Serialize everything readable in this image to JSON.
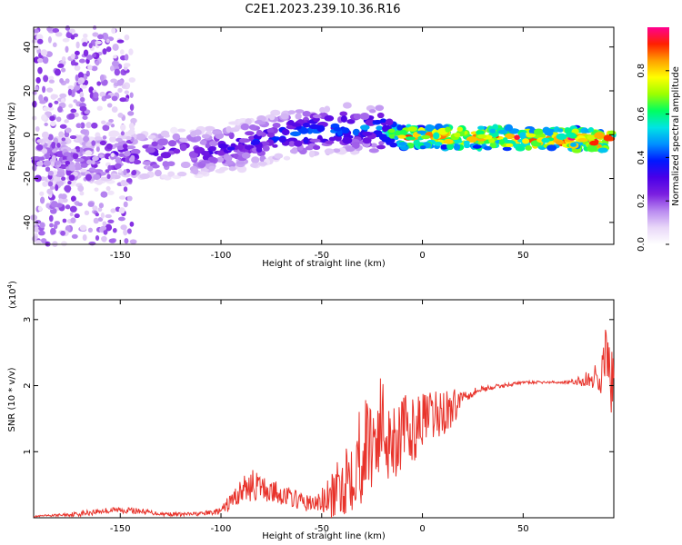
{
  "title": "C2E1.2023.239.10.36.R16",
  "colors": {
    "snr_line": "#e8332b",
    "colormap": [
      "#ffffff",
      "#e9d8f8",
      "#b98af0",
      "#7b1fe0",
      "#4a00e8",
      "#0018ff",
      "#0090ff",
      "#00e4e4",
      "#00ff60",
      "#9cff00",
      "#ffff00",
      "#ffa000",
      "#ff2000",
      "#ff0090"
    ]
  },
  "chart_data": [
    {
      "type": "heatmap",
      "xlabel": "Height of straight line (km)",
      "ylabel": "Frequency (Hz)",
      "xlim": [
        -193,
        95
      ],
      "ylim": [
        -50,
        49
      ],
      "xticks": [
        -150,
        -100,
        -50,
        0,
        50
      ],
      "yticks": [
        -40,
        -20,
        0,
        20,
        40
      ],
      "colorbar": {
        "label": "Normalized spectral amplitude",
        "range": [
          0.0,
          1.0
        ],
        "ticks": [
          "0.0",
          "0.2",
          "0.4",
          "0.6",
          "0.8"
        ]
      },
      "ridge": [
        {
          "x": -170,
          "y": -12,
          "a": 0.25
        },
        {
          "x": -150,
          "y": -10,
          "a": 0.3
        },
        {
          "x": -130,
          "y": -9,
          "a": 0.3
        },
        {
          "x": -110,
          "y": -8,
          "a": 0.3
        },
        {
          "x": -90,
          "y": -5,
          "a": 0.35
        },
        {
          "x": -70,
          "y": 0,
          "a": 0.4
        },
        {
          "x": -50,
          "y": 2,
          "a": 0.45
        },
        {
          "x": -30,
          "y": 3,
          "a": 0.45
        },
        {
          "x": -20,
          "y": 2,
          "a": 0.5
        },
        {
          "x": -10,
          "y": -1,
          "a": 0.85
        },
        {
          "x": 0,
          "y": -1,
          "a": 0.9
        },
        {
          "x": 20,
          "y": -1,
          "a": 0.9
        },
        {
          "x": 40,
          "y": -1.5,
          "a": 0.92
        },
        {
          "x": 60,
          "y": -2,
          "a": 0.95
        },
        {
          "x": 80,
          "y": -2,
          "a": 0.95
        },
        {
          "x": 95,
          "y": -3,
          "a": 0.95
        }
      ]
    },
    {
      "type": "line",
      "xlabel": "Height of straight line (km)",
      "ylabel": "SNR (10 * v/v)",
      "y_multiplier": "(x10",
      "y_multiplier_exp": "4",
      "multiplier_close": ")",
      "xlim": [
        -193,
        95
      ],
      "ylim": [
        0,
        3.3
      ],
      "xticks": [
        -150,
        -100,
        -50,
        0,
        50
      ],
      "yticks": [
        1,
        2,
        3
      ],
      "series": [
        {
          "x": [
            -193,
            -180,
            -170,
            -160,
            -150,
            -140,
            -130,
            -120,
            -110,
            -100,
            -95,
            -90,
            -85,
            -80,
            -75,
            -70,
            -65,
            -60,
            -55,
            -50,
            -45,
            -40,
            -35,
            -30,
            -25,
            -20,
            -15,
            -10,
            -5,
            0,
            5,
            10,
            15,
            20,
            25,
            30,
            40,
            50,
            60,
            70,
            75,
            80,
            85,
            88,
            90,
            92,
            94,
            95
          ],
          "y": [
            0.02,
            0.04,
            0.06,
            0.1,
            0.12,
            0.1,
            0.06,
            0.05,
            0.06,
            0.1,
            0.25,
            0.4,
            0.5,
            0.45,
            0.4,
            0.35,
            0.3,
            0.25,
            0.2,
            0.25,
            0.3,
            0.5,
            0.8,
            1.0,
            1.2,
            1.4,
            1.2,
            1.3,
            1.3,
            1.5,
            1.5,
            1.6,
            1.65,
            1.85,
            1.9,
            1.95,
            2.0,
            2.05,
            2.05,
            2.05,
            2.05,
            2.08,
            2.1,
            2.2,
            2.3,
            2.2,
            2.1,
            2.0
          ],
          "amplitude": [
            0.01,
            0.02,
            0.04,
            0.05,
            0.05,
            0.04,
            0.03,
            0.03,
            0.03,
            0.05,
            0.15,
            0.2,
            0.25,
            0.2,
            0.2,
            0.15,
            0.15,
            0.12,
            0.15,
            0.2,
            0.35,
            0.5,
            0.7,
            0.8,
            0.8,
            0.8,
            0.7,
            0.6,
            0.5,
            0.4,
            0.4,
            0.4,
            0.3,
            0.1,
            0.08,
            0.05,
            0.03,
            0.02,
            0.02,
            0.02,
            0.05,
            0.1,
            0.2,
            0.3,
            0.6,
            0.8,
            0.6,
            0.4
          ]
        }
      ]
    }
  ]
}
